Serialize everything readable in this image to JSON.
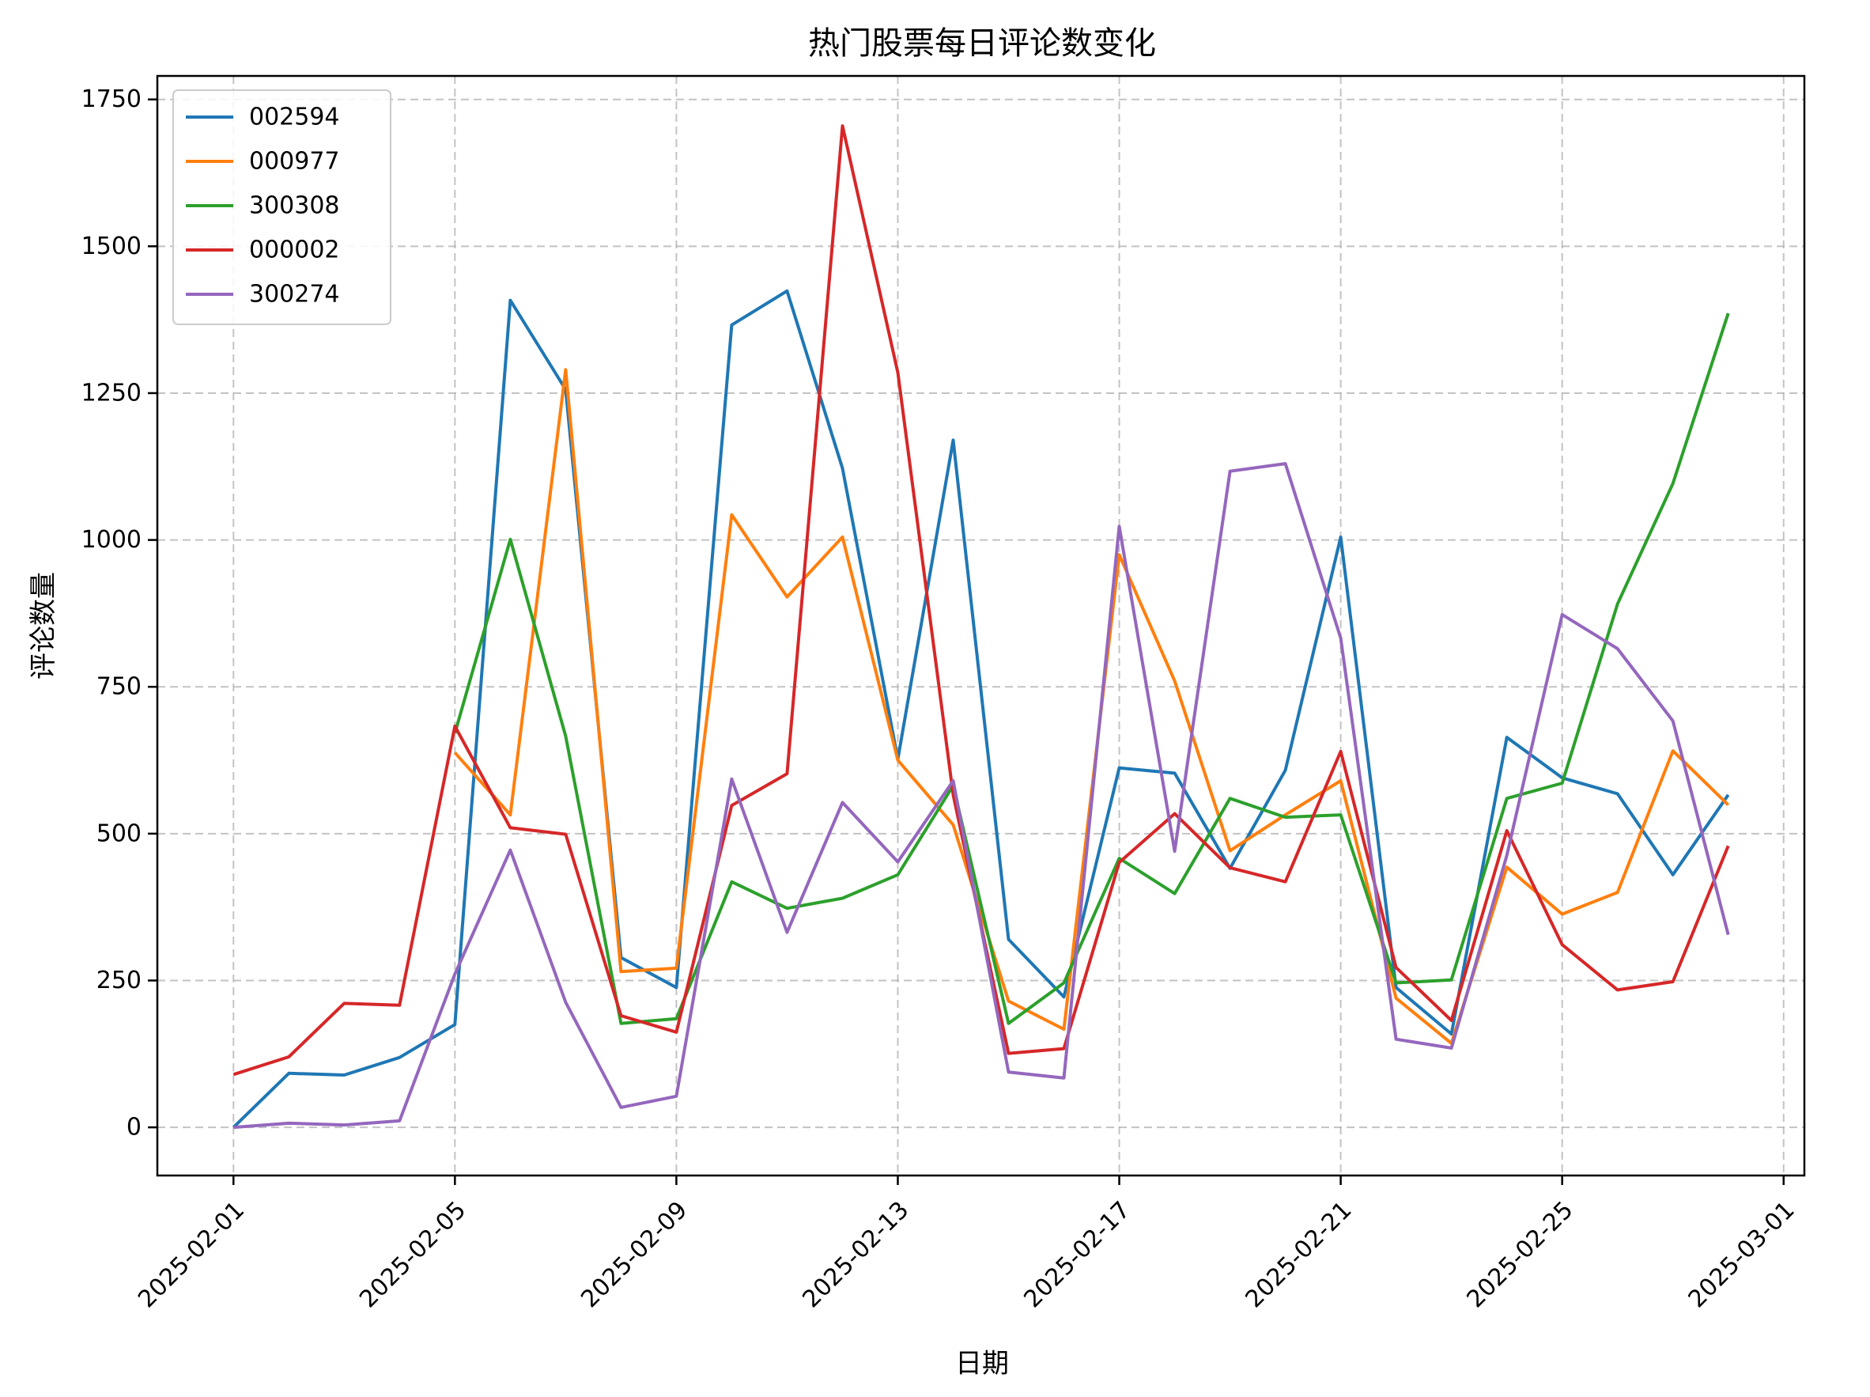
{
  "chart_data": {
    "type": "line",
    "title": "热门股票每日评论数变化",
    "xlabel": "日期",
    "ylabel": "评论数量",
    "x": [
      "2025-02-01",
      "2025-02-02",
      "2025-02-03",
      "2025-02-04",
      "2025-02-05",
      "2025-02-06",
      "2025-02-07",
      "2025-02-08",
      "2025-02-09",
      "2025-02-10",
      "2025-02-11",
      "2025-02-12",
      "2025-02-13",
      "2025-02-14",
      "2025-02-15",
      "2025-02-16",
      "2025-02-17",
      "2025-02-18",
      "2025-02-19",
      "2025-02-20",
      "2025-02-21",
      "2025-02-22",
      "2025-02-23",
      "2025-02-24",
      "2025-02-25",
      "2025-02-26",
      "2025-02-27",
      "2025-02-28"
    ],
    "xlim": [
      "2025-01-30T15:00",
      "2025-03-01T09:00"
    ],
    "xticks": [
      "2025-02-01",
      "2025-02-05",
      "2025-02-09",
      "2025-02-13",
      "2025-02-17",
      "2025-02-21",
      "2025-02-25",
      "2025-03-01"
    ],
    "ylim": [
      -82,
      1790
    ],
    "yticks": [
      0,
      250,
      500,
      750,
      1000,
      1250,
      1500,
      1750
    ],
    "grid": true,
    "legend_position": "top-left",
    "series": [
      {
        "name": "002594",
        "color": "#1f77b4",
        "values": [
          0,
          92,
          89,
          119,
          175,
          1408,
          1256,
          289,
          238,
          1366,
          1424,
          1122,
          627,
          1170,
          320,
          222,
          612,
          603,
          441,
          608,
          1005,
          238,
          159,
          664,
          595,
          568,
          430,
          566
        ]
      },
      {
        "name": "000977",
        "color": "#ff7f0e",
        "values": [
          null,
          null,
          null,
          null,
          638,
          532,
          1290,
          265,
          271,
          1043,
          903,
          1005,
          625,
          515,
          215,
          167,
          975,
          760,
          471,
          532,
          590,
          220,
          143,
          443,
          363,
          400,
          641,
          549
        ]
      },
      {
        "name": "300308",
        "color": "#2ca02c",
        "values": [
          null,
          null,
          null,
          null,
          671,
          1001,
          666,
          177,
          185,
          418,
          373,
          390,
          430,
          582,
          177,
          246,
          458,
          398,
          560,
          528,
          532,
          246,
          251,
          560,
          586,
          891,
          1096,
          1386
        ]
      },
      {
        "name": "000002",
        "color": "#d62728",
        "values": [
          90,
          120,
          211,
          208,
          683,
          510,
          499,
          190,
          162,
          548,
          602,
          1705,
          1285,
          566,
          126,
          134,
          451,
          534,
          442,
          418,
          640,
          272,
          182,
          505,
          311,
          234,
          248,
          479
        ]
      },
      {
        "name": "300274",
        "color": "#9467bd",
        "values": [
          0,
          7,
          4,
          11,
          261,
          472,
          213,
          34,
          53,
          593,
          332,
          553,
          452,
          590,
          94,
          84,
          1023,
          470,
          1117,
          1130,
          833,
          150,
          135,
          463,
          873,
          815,
          692,
          328
        ]
      }
    ]
  }
}
